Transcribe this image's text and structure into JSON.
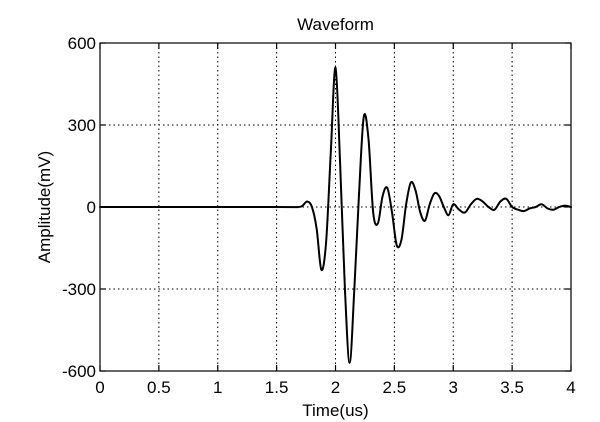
{
  "chart_data": {
    "type": "line",
    "title": "Waveform",
    "xlabel": "Time(us)",
    "ylabel": "Amplitude(mV)",
    "xlim": [
      0,
      4
    ],
    "ylim": [
      -600,
      600
    ],
    "xticks": [
      0,
      0.5,
      1,
      1.5,
      2,
      2.5,
      3,
      3.5,
      4
    ],
    "xtick_labels": [
      "0",
      "0.5",
      "1",
      "1.5",
      "2",
      "2.5",
      "3",
      "3.5",
      "4"
    ],
    "yticks": [
      600,
      300,
      0,
      -300,
      -600
    ],
    "ytick_labels": [
      "600",
      "300",
      "0",
      "-300",
      "-600"
    ],
    "grid": true,
    "series": [
      {
        "x": [
          0,
          1.5,
          1.68,
          1.72,
          1.76,
          1.8,
          1.84,
          1.88,
          1.92,
          1.96,
          2.0,
          2.04,
          2.08,
          2.12,
          2.16,
          2.2,
          2.24,
          2.28,
          2.32,
          2.36,
          2.4,
          2.44,
          2.48,
          2.52,
          2.56,
          2.6,
          2.64,
          2.68,
          2.72,
          2.76,
          2.8,
          2.84,
          2.88,
          2.92,
          2.96,
          3.0,
          3.05,
          3.1,
          3.15,
          3.2,
          3.25,
          3.3,
          3.35,
          3.4,
          3.45,
          3.5,
          3.55,
          3.6,
          3.65,
          3.7,
          3.75,
          3.8,
          3.85,
          3.9,
          3.95,
          4.0
        ],
        "y": [
          0,
          0,
          0,
          5,
          20,
          0,
          -80,
          -230,
          -130,
          200,
          510,
          150,
          -300,
          -570,
          -300,
          50,
          330,
          250,
          -20,
          -60,
          40,
          70,
          -20,
          -140,
          -120,
          10,
          90,
          60,
          -20,
          -50,
          10,
          50,
          40,
          0,
          -30,
          10,
          -10,
          -20,
          10,
          30,
          20,
          0,
          -10,
          20,
          30,
          0,
          -10,
          -15,
          -5,
          0,
          10,
          -5,
          -10,
          0,
          5,
          0
        ]
      }
    ]
  }
}
